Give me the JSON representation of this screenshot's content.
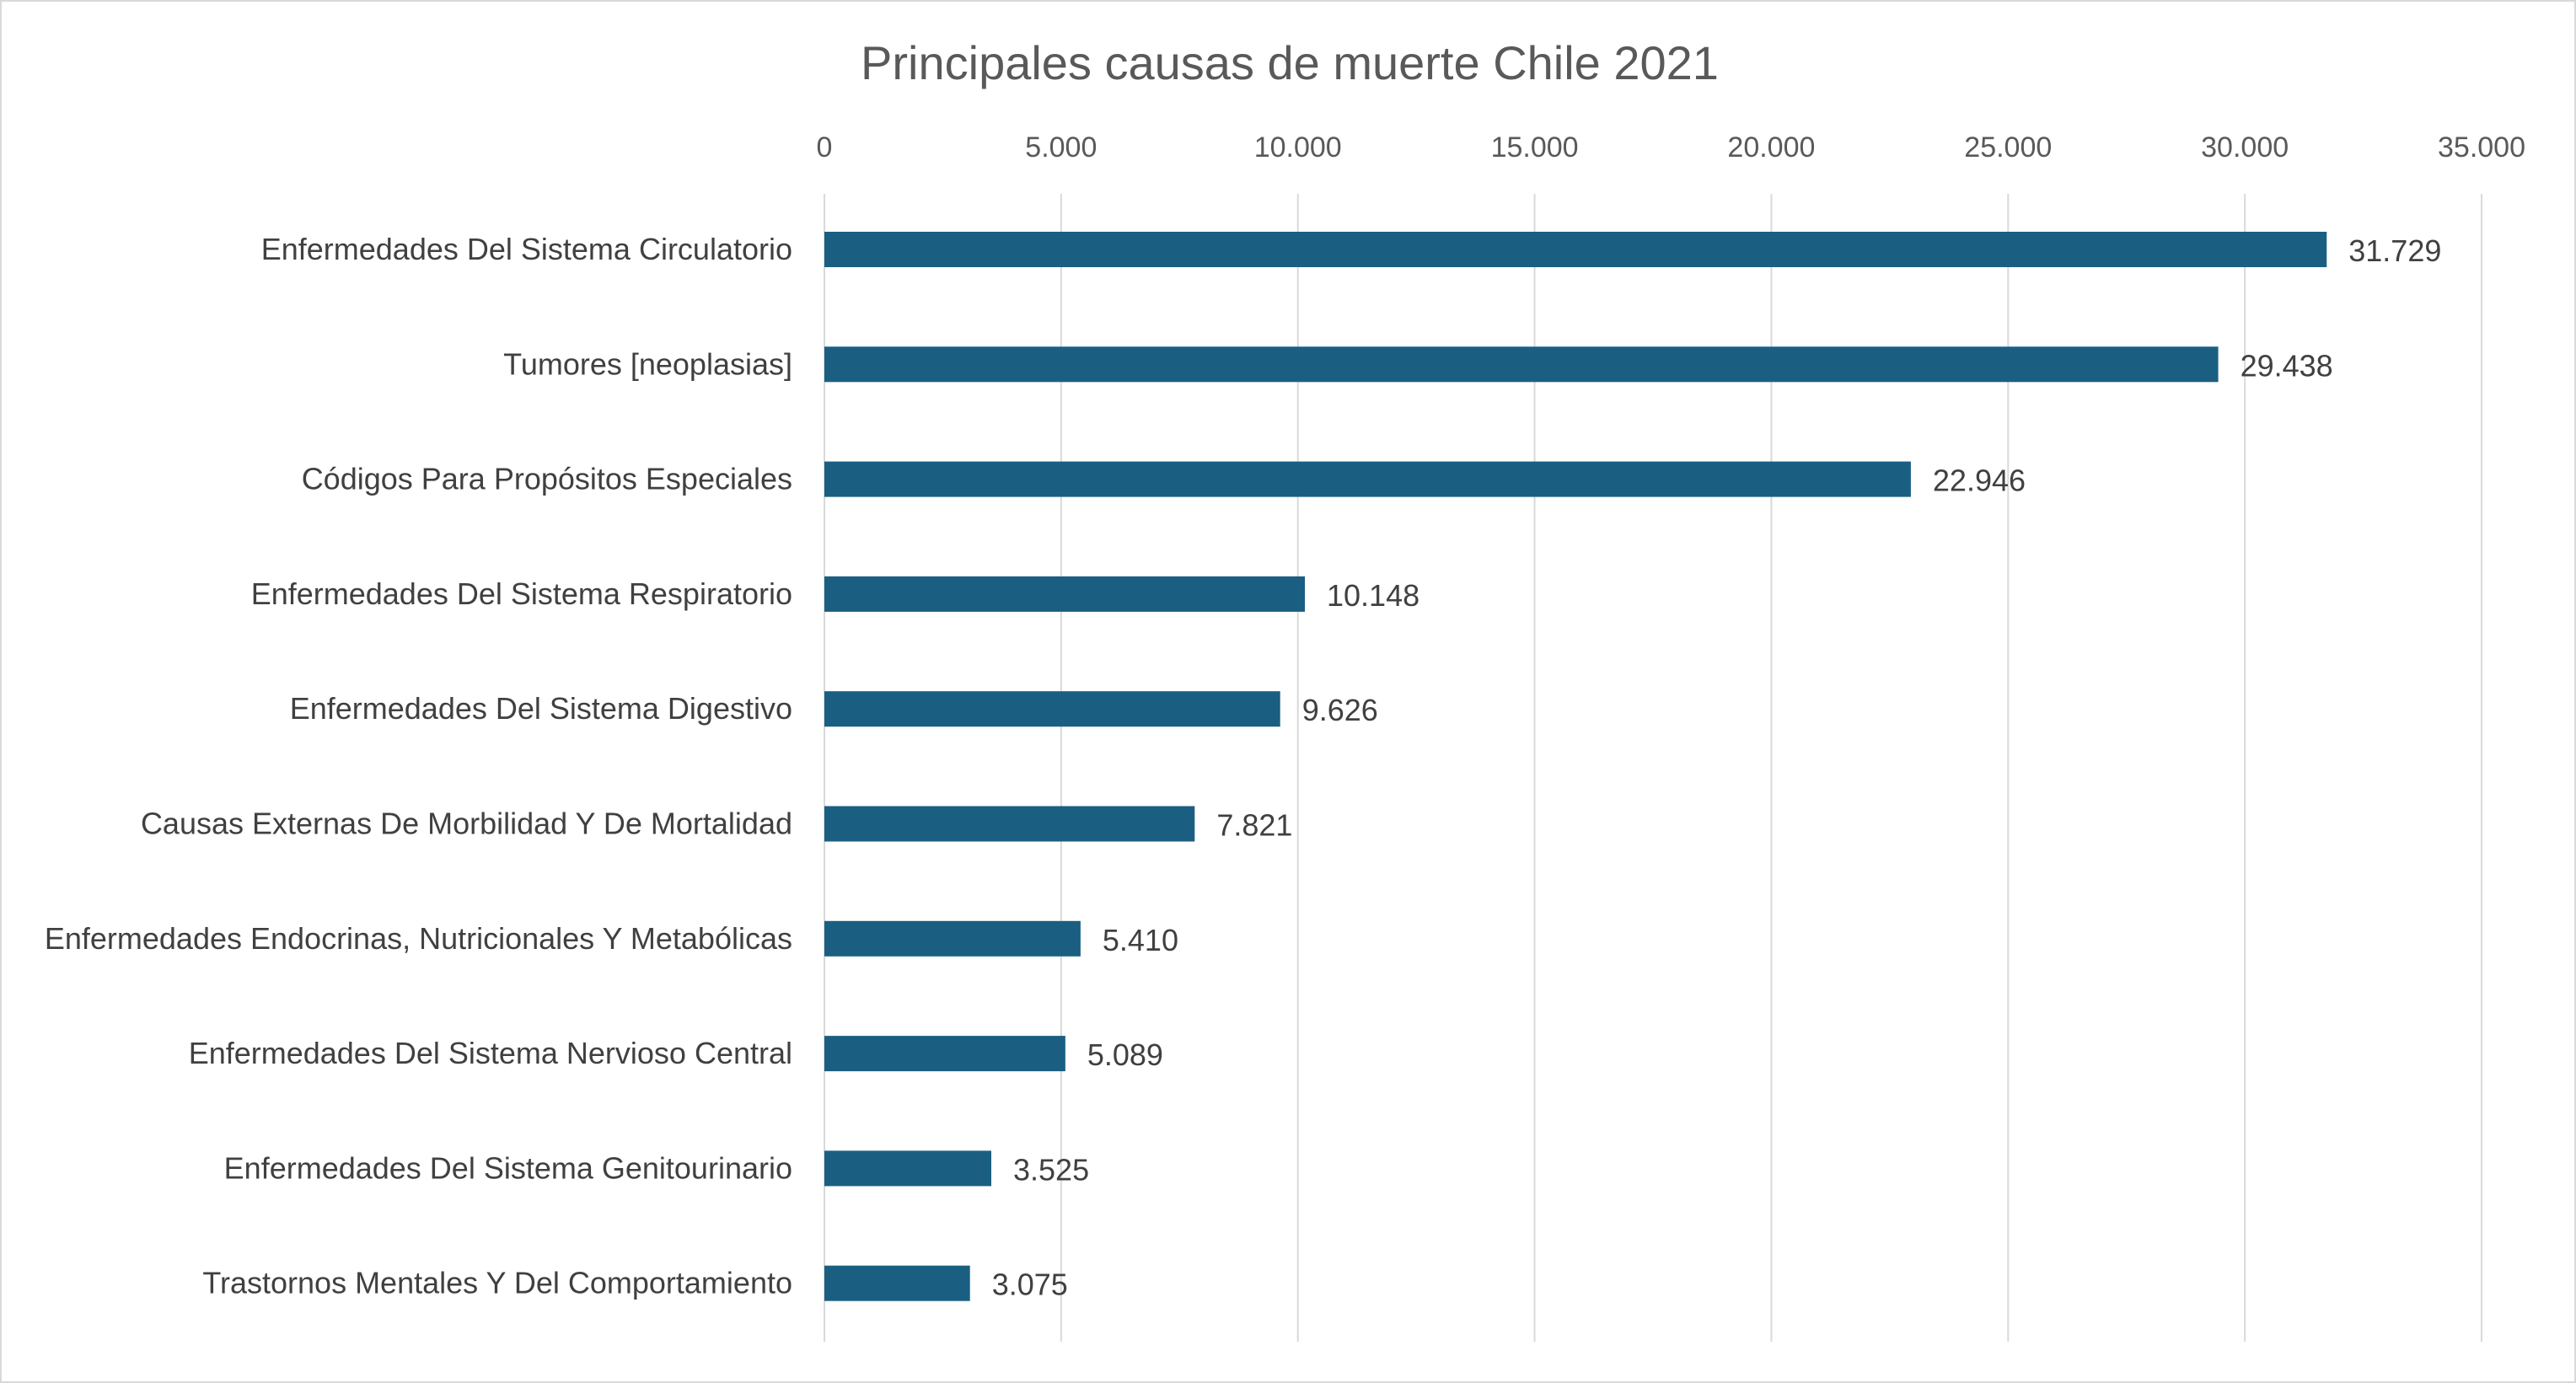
{
  "chart_data": {
    "type": "bar",
    "orientation": "horizontal",
    "title": "Principales causas de muerte Chile 2021",
    "xlabel": "",
    "ylabel": "",
    "xlim": [
      0,
      35000
    ],
    "tick_values": [
      0,
      5000,
      10000,
      15000,
      20000,
      25000,
      30000,
      35000
    ],
    "tick_labels": [
      "0",
      "5.000",
      "10.000",
      "15.000",
      "20.000",
      "25.000",
      "30.000",
      "35.000"
    ],
    "axis_position": "top",
    "grid": true,
    "legend": "none",
    "bar_color": "#1a5f82",
    "categories": [
      "Enfermedades Del Sistema Circulatorio",
      "Tumores [neoplasias]",
      "Códigos Para Propósitos Especiales",
      "Enfermedades Del Sistema Respiratorio",
      "Enfermedades Del Sistema Digestivo",
      "Causas Externas De Morbilidad Y De Mortalidad",
      "Enfermedades Endocrinas, Nutricionales Y Metabólicas",
      "Enfermedades Del Sistema Nervioso Central",
      "Enfermedades Del Sistema Genitourinario",
      "Trastornos Mentales Y Del Comportamiento"
    ],
    "values": [
      31729,
      29438,
      22946,
      10148,
      9626,
      7821,
      5410,
      5089,
      3525,
      3075
    ],
    "value_labels": [
      "31.729",
      "29.438",
      "22.946",
      "10.148",
      "9.626",
      "7.821",
      "5.410",
      "5.089",
      "3.525",
      "3.075"
    ]
  }
}
